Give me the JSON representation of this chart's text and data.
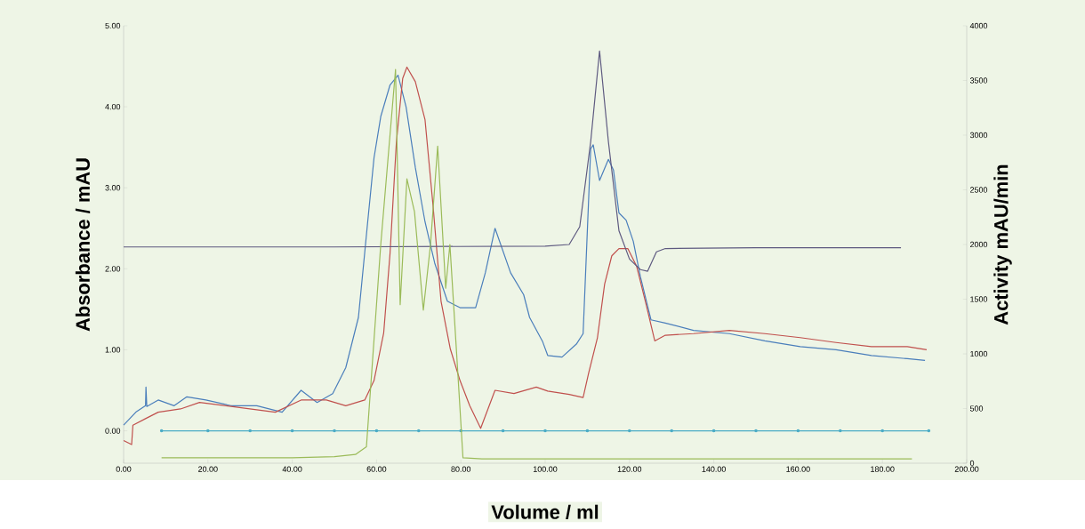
{
  "chart_data": {
    "type": "line",
    "xlabel": "Volume / ml",
    "ylabel": "Absorbance / mAU",
    "y2label": "Activity mAU/min",
    "xlim": [
      0,
      200
    ],
    "ylim": [
      -0.4,
      5
    ],
    "y2lim": [
      0,
      4000
    ],
    "xticks": [
      {
        "value": 0,
        "label": "0.00"
      },
      {
        "value": 20,
        "label": "20.00"
      },
      {
        "value": 40,
        "label": "40.00"
      },
      {
        "value": 60,
        "label": "60.00"
      },
      {
        "value": 80,
        "label": "80.00"
      },
      {
        "value": 100,
        "label": "100.00"
      },
      {
        "value": 120,
        "label": "120.00"
      },
      {
        "value": 140,
        "label": "140.00"
      },
      {
        "value": 160,
        "label": "160.00"
      },
      {
        "value": 180,
        "label": "180.00"
      },
      {
        "value": 200,
        "label": "200.00"
      }
    ],
    "yticks": [
      {
        "value": 0,
        "label": "0.00"
      },
      {
        "value": 1,
        "label": "1.00"
      },
      {
        "value": 2,
        "label": "2.00"
      },
      {
        "value": 3,
        "label": "3.00"
      },
      {
        "value": 4,
        "label": "4.00"
      },
      {
        "value": 5,
        "label": "5.00"
      }
    ],
    "y2ticks": [
      0,
      500,
      1000,
      1500,
      2000,
      2500,
      3000,
      3500,
      4000
    ],
    "grid": false,
    "series": [
      {
        "color": "#4a7ebb",
        "x": [
          0,
          2.9,
          5.2,
          5.3,
          5.5,
          8.2,
          12,
          15,
          19.5,
          25.5,
          31.6,
          37.6,
          42.1,
          45.9,
          49.6,
          52.7,
          55.7,
          57.9,
          59.4,
          61,
          63.2,
          65.1,
          67,
          69.2,
          71.5,
          73.8,
          76.8,
          79.8,
          83.5,
          85.8,
          88.1,
          91.8,
          94.9,
          96.3,
          99.4,
          100.6,
          104,
          107.4,
          109,
          110.8,
          111.4,
          112.9,
          115,
          116.2,
          117.5,
          119.2,
          120.9,
          122.6,
          125.1,
          128.5,
          135.2,
          143.7,
          152.1,
          160.5,
          169,
          177.4,
          185.9,
          190.1
        ],
        "values": [
          0.07,
          0.23,
          0.31,
          0.54,
          0.3,
          0.38,
          0.31,
          0.42,
          0.38,
          0.31,
          0.31,
          0.23,
          0.5,
          0.35,
          0.46,
          0.78,
          1.4,
          2.58,
          3.37,
          3.88,
          4.27,
          4.39,
          4.0,
          3.25,
          2.58,
          2.07,
          1.6,
          1.52,
          1.52,
          1.95,
          2.5,
          1.95,
          1.68,
          1.4,
          1.1,
          0.93,
          0.91,
          1.07,
          1.2,
          3.48,
          3.53,
          3.09,
          3.35,
          3.22,
          2.69,
          2.6,
          2.34,
          1.9,
          1.37,
          1.33,
          1.24,
          1.2,
          1.11,
          1.04,
          1.0,
          0.93,
          0.89,
          0.87
        ]
      },
      {
        "color": "#c0504d",
        "x": [
          0,
          1.9,
          2.2,
          5.2,
          8.2,
          13.5,
          18,
          24,
          30,
          36,
          42.1,
          48.1,
          52.7,
          57.2,
          59.4,
          61.7,
          63.2,
          64.7,
          66.2,
          67.2,
          69.2,
          71.5,
          73.4,
          75.3,
          77.5,
          79.8,
          82.1,
          84.7,
          88.1,
          92.6,
          97.9,
          100.6,
          105.7,
          109,
          110.3,
          112.4,
          114.1,
          115.8,
          117.5,
          119.6,
          121.7,
          123.8,
          126,
          128.5,
          135.2,
          143.7,
          152.1,
          160.5,
          169,
          177.4,
          185.9,
          190.5
        ],
        "values": [
          -0.12,
          -0.17,
          0.07,
          0.15,
          0.23,
          0.27,
          0.35,
          0.31,
          0.27,
          0.23,
          0.38,
          0.38,
          0.31,
          0.38,
          0.62,
          1.21,
          2.19,
          3.56,
          4.35,
          4.49,
          4.31,
          3.84,
          2.78,
          1.6,
          1.01,
          0.62,
          0.31,
          0.03,
          0.5,
          0.46,
          0.54,
          0.49,
          0.45,
          0.41,
          0.71,
          1.15,
          1.81,
          2.16,
          2.25,
          2.25,
          2.03,
          1.59,
          1.11,
          1.18,
          1.2,
          1.24,
          1.2,
          1.15,
          1.09,
          1.04,
          1.04,
          1.0
        ]
      },
      {
        "color": "#5e5a80",
        "x": [
          0,
          50,
          100,
          105.7,
          108.2,
          110.8,
          112.9,
          115,
          117.5,
          120,
          122.6,
          124.3,
          126.4,
          128.5,
          150,
          184.4
        ],
        "values": [
          2.27,
          2.27,
          2.28,
          2.3,
          2.52,
          3.57,
          4.69,
          3.57,
          2.47,
          2.12,
          1.99,
          1.97,
          2.21,
          2.25,
          2.26,
          2.26
        ]
      },
      {
        "color": "#9bbb59",
        "axis": "y2",
        "x": [
          9,
          40,
          50,
          55,
          57.6,
          61,
          64.5,
          65.6,
          67.2,
          69,
          71.1,
          72.8,
          74.5,
          76.4,
          77.4,
          79,
          80.5,
          85,
          120,
          187
        ],
        "values": [
          50,
          50,
          60,
          80,
          150,
          2000,
          3600,
          1450,
          2600,
          2300,
          1400,
          2000,
          2900,
          1600,
          2000,
          1000,
          50,
          40,
          40,
          40
        ]
      },
      {
        "color": "#4bacc6",
        "marker": "circle",
        "x": [
          9,
          20,
          30,
          40,
          50,
          60,
          70,
          80,
          90,
          100,
          110,
          120,
          130,
          140,
          150,
          160,
          170,
          180,
          191
        ],
        "values": [
          0,
          0,
          0,
          0,
          0,
          0,
          0,
          0,
          0,
          0,
          0,
          0,
          0,
          0,
          0,
          0,
          0,
          0,
          0
        ]
      }
    ]
  }
}
